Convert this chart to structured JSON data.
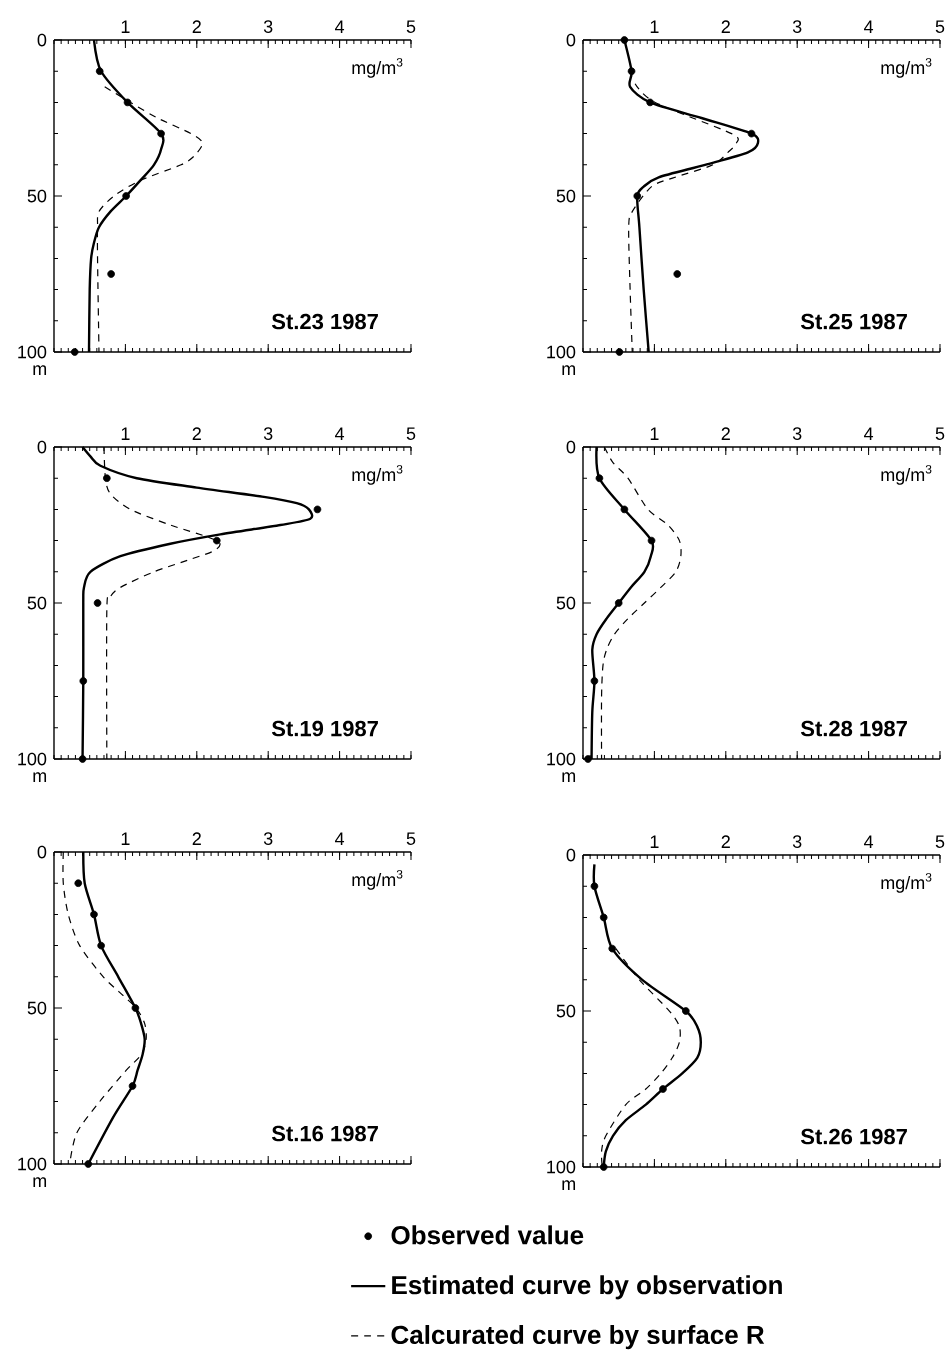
{
  "chart_data": [
    {
      "type": "line",
      "title": "St.23 1987",
      "xlabel": "mg/m$^{3}$",
      "ylabel": "m",
      "xlim": [
        0,
        5
      ],
      "ylim": [
        100,
        0
      ],
      "xticks": [
        1,
        2,
        3,
        4,
        5
      ],
      "yticks": [
        0,
        50,
        100
      ],
      "series": [
        {
          "type": "scatter",
          "marker": "circle",
          "color": "#000000",
          "x": [
            0.64,
            1.03,
            1.5,
            1.01,
            0.8,
            0.29
          ],
          "values": [
            10,
            20,
            30,
            50,
            75,
            100
          ]
        },
        {
          "type": "line",
          "line_style": "solid",
          "color": "#000000",
          "x": [
            0.56,
            0.66,
            1.03,
            1.5,
            1.5,
            1.4,
            1.21,
            1.01,
            0.79,
            0.63,
            0.56,
            0.52,
            0.5,
            0.49
          ],
          "values": [
            0,
            10,
            20,
            30,
            35,
            40,
            45,
            50,
            55,
            60,
            65,
            70,
            80,
            100
          ]
        },
        {
          "type": "line",
          "line_style": "dashed",
          "color": "#000000",
          "x": [
            0.71,
            1.07,
            1.45,
            1.92,
            2.08,
            1.97,
            1.78,
            1.21,
            0.84,
            0.63,
            0.61,
            0.61,
            0.63
          ],
          "values": [
            15,
            20,
            25,
            30,
            33,
            37,
            40,
            45,
            50,
            55,
            60,
            70,
            100
          ]
        }
      ]
    },
    {
      "type": "line",
      "title": "St.25 1987",
      "xlabel": "mg/m$^{3}$",
      "ylabel": "m",
      "xlim": [
        0,
        5
      ],
      "ylim": [
        100,
        0
      ],
      "xticks": [
        1,
        2,
        3,
        4,
        5
      ],
      "yticks": [
        0,
        50,
        100
      ],
      "series": [
        {
          "type": "scatter",
          "marker": "circle",
          "color": "#000000",
          "x": [
            0.58,
            0.68,
            0.94,
            2.36,
            0.76,
            1.32,
            0.51
          ],
          "values": [
            0,
            10,
            20,
            30,
            50,
            75,
            100
          ]
        },
        {
          "type": "line",
          "line_style": "solid",
          "color": "#000000",
          "x": [
            0.58,
            0.68,
            0.66,
            0.94,
            1.66,
            2.36,
            2.45,
            2.31,
            1.71,
            1.06,
            0.85,
            0.76,
            0.79,
            0.85,
            0.92
          ],
          "values": [
            0,
            10,
            15,
            20,
            25,
            30,
            33,
            36,
            40,
            44,
            47,
            50,
            60,
            80,
            100
          ]
        },
        {
          "type": "line",
          "line_style": "dashed",
          "color": "#000000",
          "x": [
            0.73,
            1.01,
            2.08,
            2.15,
            2.03,
            1.82,
            1.29,
            0.96,
            0.69,
            0.64,
            0.66,
            0.69
          ],
          "values": [
            14,
            20,
            30,
            33,
            36,
            40,
            44,
            47,
            55,
            60,
            80,
            100
          ]
        }
      ]
    },
    {
      "type": "line",
      "title": "St.19 1987",
      "xlabel": "mg/m$^{3}$",
      "ylabel": "m",
      "xlim": [
        0,
        5
      ],
      "ylim": [
        100,
        0
      ],
      "xticks": [
        1,
        2,
        3,
        4,
        5
      ],
      "yticks": [
        0,
        50,
        100
      ],
      "series": [
        {
          "type": "scatter",
          "marker": "circle",
          "color": "#000000",
          "x": [
            0.74,
            3.69,
            2.28,
            0.61,
            0.41,
            0.4
          ],
          "values": [
            10,
            20,
            30,
            50,
            75,
            100
          ]
        },
        {
          "type": "line",
          "line_style": "solid",
          "color": "#000000",
          "x": [
            0.4,
            0.51,
            0.65,
            1.16,
            2.0,
            2.94,
            3.4,
            3.57,
            3.59,
            3.17,
            2.33,
            1.63,
            0.93,
            0.51,
            0.42,
            0.41,
            0.41,
            0.4
          ],
          "values": [
            0,
            3,
            6,
            10,
            13,
            16,
            18,
            20,
            23,
            25,
            28,
            31,
            35,
            40,
            45,
            50,
            75,
            100
          ]
        },
        {
          "type": "line",
          "line_style": "dashed",
          "color": "#000000",
          "x": [
            0.7,
            0.72,
            0.79,
            1.07,
            1.63,
            2.28,
            2.26,
            1.91,
            1.4,
            0.93,
            0.79,
            0.74,
            0.74
          ],
          "values": [
            0,
            10,
            15,
            20,
            25,
            30,
            33,
            36,
            40,
            45,
            48,
            52,
            100
          ]
        }
      ]
    },
    {
      "type": "line",
      "title": "St.28 1987",
      "xlabel": "mg/m$^{3}$",
      "ylabel": "m",
      "xlim": [
        0,
        5
      ],
      "ylim": [
        100,
        0
      ],
      "xticks": [
        1,
        2,
        3,
        4,
        5
      ],
      "yticks": [
        0,
        50,
        100
      ],
      "series": [
        {
          "type": "scatter",
          "marker": "circle",
          "color": "#000000",
          "x": [
            0.23,
            0.58,
            0.96,
            0.5,
            0.16,
            0.07
          ],
          "values": [
            10,
            20,
            30,
            50,
            75,
            100
          ]
        },
        {
          "type": "line",
          "line_style": "solid",
          "color": "#000000",
          "x": [
            0.19,
            0.23,
            0.58,
            0.96,
            0.95,
            0.86,
            0.67,
            0.5,
            0.33,
            0.19,
            0.13,
            0.16,
            0.13,
            0.12
          ],
          "values": [
            0,
            10,
            20,
            30,
            35,
            40,
            45,
            50,
            55,
            60,
            65,
            75,
            85,
            100
          ]
        },
        {
          "type": "line",
          "line_style": "dashed",
          "color": "#000000",
          "x": [
            0.3,
            0.42,
            0.63,
            0.91,
            1.19,
            1.35,
            1.37,
            1.3,
            1.09,
            0.86,
            0.63,
            0.44,
            0.33,
            0.28,
            0.26,
            0.26
          ],
          "values": [
            0,
            5,
            10,
            20,
            25,
            30,
            35,
            40,
            45,
            50,
            55,
            60,
            65,
            70,
            80,
            100
          ]
        }
      ]
    },
    {
      "type": "line",
      "title": "St.16 1987",
      "xlabel": "mg/m$^{3}$",
      "ylabel": "m",
      "xlim": [
        0,
        5
      ],
      "ylim": [
        100,
        0
      ],
      "xticks": [
        1,
        2,
        3,
        4,
        5
      ],
      "yticks": [
        0,
        50,
        100
      ],
      "series": [
        {
          "type": "scatter",
          "marker": "circle",
          "color": "#000000",
          "x": [
            0.34,
            0.56,
            0.66,
            1.14,
            1.1,
            0.48
          ],
          "values": [
            10,
            20,
            30,
            50,
            75,
            100
          ]
        },
        {
          "type": "line",
          "line_style": "solid",
          "color": "#000000",
          "x": [
            0.41,
            0.43,
            0.56,
            0.66,
            0.9,
            1.14,
            1.22,
            1.27,
            1.24,
            1.17,
            1.1,
            0.83,
            0.48
          ],
          "values": [
            0,
            10,
            20,
            30,
            40,
            50,
            55,
            60,
            65,
            70,
            75,
            85,
            100
          ]
        },
        {
          "type": "line",
          "line_style": "dashed",
          "color": "#000000",
          "x": [
            0.13,
            0.13,
            0.2,
            0.36,
            0.69,
            0.92,
            1.15,
            1.27,
            1.29,
            1.22,
            1.01,
            0.64,
            0.32,
            0.22
          ],
          "values": [
            0,
            10,
            20,
            30,
            40,
            45,
            50,
            55,
            60,
            65,
            70,
            80,
            90,
            100
          ]
        }
      ]
    },
    {
      "type": "line",
      "title": "St.26 1987",
      "xlabel": "mg/m$^{3}$",
      "ylabel": "m",
      "xlim": [
        0,
        5
      ],
      "ylim": [
        100,
        0
      ],
      "xticks": [
        1,
        2,
        3,
        4,
        5
      ],
      "yticks": [
        0,
        50,
        100
      ],
      "legend": "bottom",
      "series": [
        {
          "name": "Observed value",
          "type": "scatter",
          "marker": "circle",
          "color": "#000000",
          "x": [
            0.16,
            0.29,
            0.41,
            1.44,
            1.12,
            0.29
          ],
          "values": [
            10,
            20,
            30,
            50,
            75,
            100
          ]
        },
        {
          "name": "Estimated curve by observation",
          "type": "line",
          "line_style": "solid",
          "color": "#000000",
          "x": [
            0.16,
            0.16,
            0.29,
            0.41,
            0.83,
            1.44,
            1.6,
            1.65,
            1.6,
            1.39,
            1.12,
            0.88,
            0.6,
            0.42,
            0.32,
            0.29
          ],
          "values": [
            3,
            10,
            20,
            30,
            40,
            50,
            55,
            60,
            65,
            70,
            75,
            80,
            85,
            90,
            95,
            100
          ]
        },
        {
          "name": "Calcurated curve by surface R",
          "type": "line",
          "line_style": "dashed",
          "color": "#000000",
          "x": [
            0.46,
            0.79,
            1.21,
            1.35,
            1.35,
            1.25,
            1.09,
            0.88,
            0.6,
            0.32,
            0.26,
            0.27
          ],
          "values": [
            30,
            40,
            50,
            55,
            60,
            65,
            70,
            75,
            80,
            90,
            95,
            100
          ]
        }
      ]
    }
  ]
}
